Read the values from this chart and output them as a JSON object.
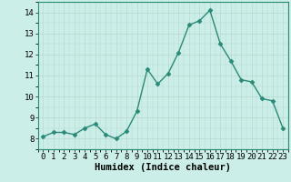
{
  "x": [
    0,
    1,
    2,
    3,
    4,
    5,
    6,
    7,
    8,
    9,
    10,
    11,
    12,
    13,
    14,
    15,
    16,
    17,
    18,
    19,
    20,
    21,
    22,
    23
  ],
  "y": [
    8.1,
    8.3,
    8.3,
    8.2,
    8.5,
    8.7,
    8.2,
    8.0,
    8.35,
    9.3,
    11.3,
    10.6,
    11.1,
    12.1,
    13.4,
    13.6,
    14.1,
    12.5,
    11.7,
    10.8,
    10.7,
    9.9,
    9.8,
    8.5
  ],
  "line_color": "#2a8a78",
  "marker": "D",
  "marker_size": 2.5,
  "linewidth": 1.0,
  "xlabel": "Humidex (Indice chaleur)",
  "xlim": [
    -0.5,
    23.5
  ],
  "ylim": [
    7.5,
    14.5
  ],
  "yticks": [
    8,
    9,
    10,
    11,
    12,
    13,
    14
  ],
  "xticks": [
    0,
    1,
    2,
    3,
    4,
    5,
    6,
    7,
    8,
    9,
    10,
    11,
    12,
    13,
    14,
    15,
    16,
    17,
    18,
    19,
    20,
    21,
    22,
    23
  ],
  "bg_color": "#cceee8",
  "grid_color_major": "#b8d8d0",
  "xlabel_fontsize": 7.5,
  "tick_fontsize": 6.5
}
